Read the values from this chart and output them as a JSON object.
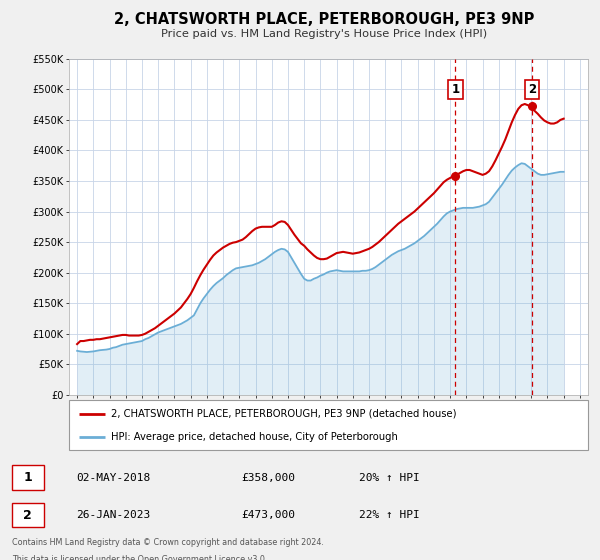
{
  "title": "2, CHATSWORTH PLACE, PETERBOROUGH, PE3 9NP",
  "subtitle": "Price paid vs. HM Land Registry's House Price Index (HPI)",
  "ylim": [
    0,
    550000
  ],
  "xlim": [
    1994.5,
    2026.5
  ],
  "yticks": [
    0,
    50000,
    100000,
    150000,
    200000,
    250000,
    300000,
    350000,
    400000,
    450000,
    500000,
    550000
  ],
  "ytick_labels": [
    "£0",
    "£50K",
    "£100K",
    "£150K",
    "£200K",
    "£250K",
    "£300K",
    "£350K",
    "£400K",
    "£450K",
    "£500K",
    "£550K"
  ],
  "xticks": [
    1995,
    1996,
    1997,
    1998,
    1999,
    2000,
    2001,
    2002,
    2003,
    2004,
    2005,
    2006,
    2007,
    2008,
    2009,
    2010,
    2011,
    2012,
    2013,
    2014,
    2015,
    2016,
    2017,
    2018,
    2019,
    2020,
    2021,
    2022,
    2023,
    2024,
    2025,
    2026
  ],
  "hpi_color": "#6baed6",
  "price_color": "#cc0000",
  "vline_color": "#cc0000",
  "grid_color": "#c8d4e8",
  "background_color": "#f0f0f0",
  "plot_bg_color": "#ffffff",
  "legend_label_price": "2, CHATSWORTH PLACE, PETERBOROUGH, PE3 9NP (detached house)",
  "legend_label_hpi": "HPI: Average price, detached house, City of Peterborough",
  "annotation1_label": "1",
  "annotation1_date": "02-MAY-2018",
  "annotation1_price": "£358,000",
  "annotation1_hpi": "20% ↑ HPI",
  "annotation1_year": 2018.33,
  "annotation1_value": 358000,
  "annotation2_label": "2",
  "annotation2_date": "26-JAN-2023",
  "annotation2_price": "£473,000",
  "annotation2_hpi": "22% ↑ HPI",
  "annotation2_year": 2023.07,
  "annotation2_value": 473000,
  "footer_line1": "Contains HM Land Registry data © Crown copyright and database right 2024.",
  "footer_line2": "This data is licensed under the Open Government Licence v3.0.",
  "hpi_data": [
    [
      1995.0,
      72000
    ],
    [
      1995.2,
      71000
    ],
    [
      1995.4,
      70500
    ],
    [
      1995.6,
      70000
    ],
    [
      1995.8,
      70500
    ],
    [
      1996.0,
      71000
    ],
    [
      1996.2,
      72000
    ],
    [
      1996.4,
      73000
    ],
    [
      1996.6,
      73500
    ],
    [
      1996.8,
      74000
    ],
    [
      1997.0,
      75000
    ],
    [
      1997.2,
      77000
    ],
    [
      1997.4,
      78000
    ],
    [
      1997.6,
      80000
    ],
    [
      1997.8,
      82000
    ],
    [
      1998.0,
      83000
    ],
    [
      1998.2,
      84000
    ],
    [
      1998.4,
      85000
    ],
    [
      1998.6,
      86000
    ],
    [
      1998.8,
      87000
    ],
    [
      1999.0,
      88000
    ],
    [
      1999.2,
      91000
    ],
    [
      1999.4,
      93000
    ],
    [
      1999.6,
      96000
    ],
    [
      1999.8,
      99000
    ],
    [
      2000.0,
      102000
    ],
    [
      2000.2,
      104000
    ],
    [
      2000.4,
      106000
    ],
    [
      2000.6,
      108000
    ],
    [
      2000.8,
      110000
    ],
    [
      2001.0,
      112000
    ],
    [
      2001.2,
      114000
    ],
    [
      2001.4,
      116000
    ],
    [
      2001.6,
      119000
    ],
    [
      2001.8,
      122000
    ],
    [
      2002.0,
      126000
    ],
    [
      2002.2,
      130000
    ],
    [
      2002.4,
      140000
    ],
    [
      2002.6,
      150000
    ],
    [
      2002.8,
      158000
    ],
    [
      2003.0,
      165000
    ],
    [
      2003.2,
      172000
    ],
    [
      2003.4,
      178000
    ],
    [
      2003.6,
      183000
    ],
    [
      2003.8,
      187000
    ],
    [
      2004.0,
      191000
    ],
    [
      2004.2,
      196000
    ],
    [
      2004.4,
      200000
    ],
    [
      2004.6,
      204000
    ],
    [
      2004.8,
      207000
    ],
    [
      2005.0,
      208000
    ],
    [
      2005.2,
      209000
    ],
    [
      2005.4,
      210000
    ],
    [
      2005.6,
      211000
    ],
    [
      2005.8,
      212000
    ],
    [
      2006.0,
      214000
    ],
    [
      2006.2,
      216000
    ],
    [
      2006.4,
      219000
    ],
    [
      2006.6,
      222000
    ],
    [
      2006.8,
      226000
    ],
    [
      2007.0,
      230000
    ],
    [
      2007.2,
      234000
    ],
    [
      2007.4,
      237000
    ],
    [
      2007.6,
      239000
    ],
    [
      2007.8,
      238000
    ],
    [
      2008.0,
      234000
    ],
    [
      2008.2,
      225000
    ],
    [
      2008.4,
      216000
    ],
    [
      2008.6,
      207000
    ],
    [
      2008.8,
      198000
    ],
    [
      2009.0,
      190000
    ],
    [
      2009.2,
      187000
    ],
    [
      2009.4,
      187000
    ],
    [
      2009.6,
      190000
    ],
    [
      2009.8,
      192000
    ],
    [
      2010.0,
      195000
    ],
    [
      2010.2,
      197000
    ],
    [
      2010.4,
      200000
    ],
    [
      2010.6,
      202000
    ],
    [
      2010.8,
      203000
    ],
    [
      2011.0,
      204000
    ],
    [
      2011.2,
      203000
    ],
    [
      2011.4,
      202000
    ],
    [
      2011.6,
      202000
    ],
    [
      2011.8,
      202000
    ],
    [
      2012.0,
      202000
    ],
    [
      2012.2,
      202000
    ],
    [
      2012.4,
      202000
    ],
    [
      2012.6,
      203000
    ],
    [
      2012.8,
      203000
    ],
    [
      2013.0,
      204000
    ],
    [
      2013.2,
      206000
    ],
    [
      2013.4,
      209000
    ],
    [
      2013.6,
      213000
    ],
    [
      2013.8,
      217000
    ],
    [
      2014.0,
      221000
    ],
    [
      2014.2,
      225000
    ],
    [
      2014.4,
      229000
    ],
    [
      2014.6,
      232000
    ],
    [
      2014.8,
      235000
    ],
    [
      2015.0,
      237000
    ],
    [
      2015.2,
      239000
    ],
    [
      2015.4,
      242000
    ],
    [
      2015.6,
      245000
    ],
    [
      2015.8,
      248000
    ],
    [
      2016.0,
      252000
    ],
    [
      2016.2,
      256000
    ],
    [
      2016.4,
      260000
    ],
    [
      2016.6,
      265000
    ],
    [
      2016.8,
      270000
    ],
    [
      2017.0,
      275000
    ],
    [
      2017.2,
      280000
    ],
    [
      2017.4,
      286000
    ],
    [
      2017.6,
      292000
    ],
    [
      2017.8,
      297000
    ],
    [
      2018.0,
      300000
    ],
    [
      2018.2,
      302000
    ],
    [
      2018.4,
      304000
    ],
    [
      2018.6,
      305000
    ],
    [
      2018.8,
      306000
    ],
    [
      2019.0,
      306000
    ],
    [
      2019.2,
      306000
    ],
    [
      2019.4,
      306000
    ],
    [
      2019.6,
      307000
    ],
    [
      2019.8,
      308000
    ],
    [
      2020.0,
      310000
    ],
    [
      2020.2,
      312000
    ],
    [
      2020.4,
      316000
    ],
    [
      2020.6,
      323000
    ],
    [
      2020.8,
      330000
    ],
    [
      2021.0,
      337000
    ],
    [
      2021.2,
      344000
    ],
    [
      2021.4,
      352000
    ],
    [
      2021.6,
      360000
    ],
    [
      2021.8,
      367000
    ],
    [
      2022.0,
      372000
    ],
    [
      2022.2,
      376000
    ],
    [
      2022.4,
      379000
    ],
    [
      2022.6,
      378000
    ],
    [
      2022.8,
      374000
    ],
    [
      2023.0,
      370000
    ],
    [
      2023.2,
      366000
    ],
    [
      2023.4,
      362000
    ],
    [
      2023.6,
      360000
    ],
    [
      2023.8,
      360000
    ],
    [
      2024.0,
      361000
    ],
    [
      2024.2,
      362000
    ],
    [
      2024.4,
      363000
    ],
    [
      2024.6,
      364000
    ],
    [
      2024.8,
      365000
    ],
    [
      2025.0,
      365000
    ]
  ],
  "price_data": [
    [
      1995.0,
      83000
    ],
    [
      1995.2,
      88000
    ],
    [
      1995.4,
      88000
    ],
    [
      1995.6,
      89000
    ],
    [
      1995.8,
      90000
    ],
    [
      1996.0,
      90000
    ],
    [
      1996.2,
      91000
    ],
    [
      1996.4,
      91000
    ],
    [
      1996.6,
      92000
    ],
    [
      1996.8,
      93000
    ],
    [
      1997.0,
      94000
    ],
    [
      1997.2,
      95000
    ],
    [
      1997.4,
      96000
    ],
    [
      1997.6,
      97000
    ],
    [
      1997.8,
      98000
    ],
    [
      1998.0,
      98000
    ],
    [
      1998.2,
      97000
    ],
    [
      1998.4,
      97000
    ],
    [
      1998.6,
      97000
    ],
    [
      1998.8,
      97000
    ],
    [
      1999.0,
      98000
    ],
    [
      1999.2,
      100000
    ],
    [
      1999.4,
      103000
    ],
    [
      1999.6,
      106000
    ],
    [
      1999.8,
      109000
    ],
    [
      2000.0,
      113000
    ],
    [
      2000.2,
      117000
    ],
    [
      2000.4,
      121000
    ],
    [
      2000.6,
      125000
    ],
    [
      2000.8,
      129000
    ],
    [
      2001.0,
      133000
    ],
    [
      2001.2,
      138000
    ],
    [
      2001.4,
      143000
    ],
    [
      2001.6,
      150000
    ],
    [
      2001.8,
      157000
    ],
    [
      2002.0,
      165000
    ],
    [
      2002.2,
      175000
    ],
    [
      2002.4,
      186000
    ],
    [
      2002.6,
      196000
    ],
    [
      2002.8,
      205000
    ],
    [
      2003.0,
      213000
    ],
    [
      2003.2,
      221000
    ],
    [
      2003.4,
      228000
    ],
    [
      2003.6,
      233000
    ],
    [
      2003.8,
      237000
    ],
    [
      2004.0,
      241000
    ],
    [
      2004.2,
      244000
    ],
    [
      2004.4,
      247000
    ],
    [
      2004.6,
      249000
    ],
    [
      2004.8,
      250000
    ],
    [
      2005.0,
      252000
    ],
    [
      2005.2,
      254000
    ],
    [
      2005.4,
      258000
    ],
    [
      2005.6,
      263000
    ],
    [
      2005.8,
      268000
    ],
    [
      2006.0,
      272000
    ],
    [
      2006.2,
      274000
    ],
    [
      2006.4,
      275000
    ],
    [
      2006.6,
      275000
    ],
    [
      2006.8,
      275000
    ],
    [
      2007.0,
      275000
    ],
    [
      2007.2,
      278000
    ],
    [
      2007.4,
      282000
    ],
    [
      2007.6,
      284000
    ],
    [
      2007.8,
      283000
    ],
    [
      2008.0,
      278000
    ],
    [
      2008.2,
      270000
    ],
    [
      2008.4,
      262000
    ],
    [
      2008.6,
      255000
    ],
    [
      2008.8,
      248000
    ],
    [
      2009.0,
      244000
    ],
    [
      2009.2,
      238000
    ],
    [
      2009.4,
      233000
    ],
    [
      2009.6,
      228000
    ],
    [
      2009.8,
      224000
    ],
    [
      2010.0,
      222000
    ],
    [
      2010.2,
      222000
    ],
    [
      2010.4,
      223000
    ],
    [
      2010.6,
      226000
    ],
    [
      2010.8,
      229000
    ],
    [
      2011.0,
      232000
    ],
    [
      2011.2,
      233000
    ],
    [
      2011.4,
      234000
    ],
    [
      2011.6,
      233000
    ],
    [
      2011.8,
      232000
    ],
    [
      2012.0,
      231000
    ],
    [
      2012.2,
      232000
    ],
    [
      2012.4,
      233000
    ],
    [
      2012.6,
      235000
    ],
    [
      2012.8,
      237000
    ],
    [
      2013.0,
      239000
    ],
    [
      2013.2,
      242000
    ],
    [
      2013.4,
      246000
    ],
    [
      2013.6,
      250000
    ],
    [
      2013.8,
      255000
    ],
    [
      2014.0,
      260000
    ],
    [
      2014.2,
      265000
    ],
    [
      2014.4,
      270000
    ],
    [
      2014.6,
      275000
    ],
    [
      2014.8,
      280000
    ],
    [
      2015.0,
      284000
    ],
    [
      2015.2,
      288000
    ],
    [
      2015.4,
      292000
    ],
    [
      2015.6,
      296000
    ],
    [
      2015.8,
      300000
    ],
    [
      2016.0,
      305000
    ],
    [
      2016.2,
      310000
    ],
    [
      2016.4,
      315000
    ],
    [
      2016.6,
      320000
    ],
    [
      2016.8,
      325000
    ],
    [
      2017.0,
      330000
    ],
    [
      2017.2,
      336000
    ],
    [
      2017.4,
      342000
    ],
    [
      2017.6,
      348000
    ],
    [
      2017.8,
      352000
    ],
    [
      2018.0,
      355000
    ],
    [
      2018.2,
      358000
    ],
    [
      2018.4,
      360000
    ],
    [
      2018.6,
      363000
    ],
    [
      2018.8,
      366000
    ],
    [
      2019.0,
      368000
    ],
    [
      2019.2,
      368000
    ],
    [
      2019.4,
      366000
    ],
    [
      2019.6,
      364000
    ],
    [
      2019.8,
      362000
    ],
    [
      2020.0,
      360000
    ],
    [
      2020.2,
      362000
    ],
    [
      2020.4,
      366000
    ],
    [
      2020.6,
      374000
    ],
    [
      2020.8,
      384000
    ],
    [
      2021.0,
      395000
    ],
    [
      2021.2,
      406000
    ],
    [
      2021.4,
      418000
    ],
    [
      2021.6,
      432000
    ],
    [
      2021.8,
      446000
    ],
    [
      2022.0,
      458000
    ],
    [
      2022.2,
      468000
    ],
    [
      2022.4,
      474000
    ],
    [
      2022.6,
      476000
    ],
    [
      2022.8,
      474000
    ],
    [
      2023.0,
      470000
    ],
    [
      2023.2,
      465000
    ],
    [
      2023.4,
      460000
    ],
    [
      2023.6,
      454000
    ],
    [
      2023.8,
      449000
    ],
    [
      2024.0,
      446000
    ],
    [
      2024.2,
      444000
    ],
    [
      2024.4,
      444000
    ],
    [
      2024.6,
      446000
    ],
    [
      2024.8,
      450000
    ],
    [
      2025.0,
      452000
    ]
  ]
}
